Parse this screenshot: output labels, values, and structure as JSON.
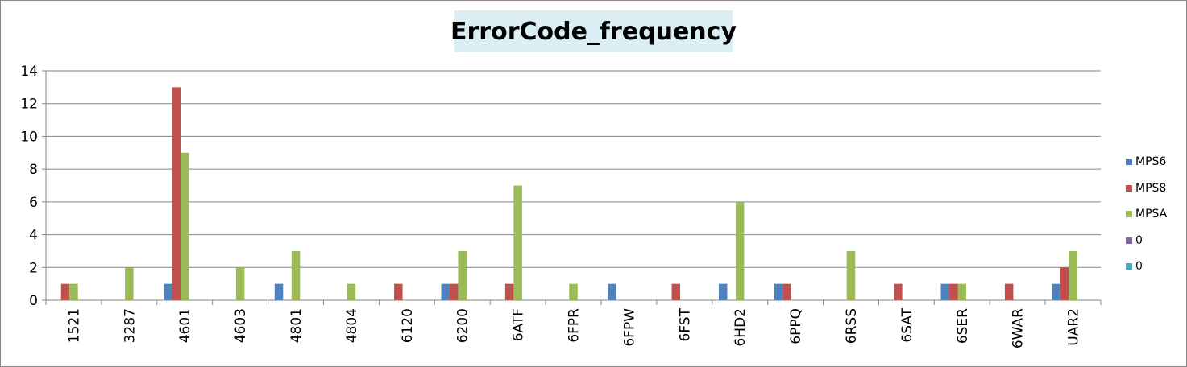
{
  "chart_data": {
    "type": "bar",
    "title": "ErrorCode_frequency",
    "xlabel": "",
    "ylabel": "",
    "ylim": [
      0,
      14
    ],
    "yticks": [
      0,
      2,
      4,
      6,
      8,
      10,
      12,
      14
    ],
    "grid": true,
    "legend_position": "right",
    "categories": [
      "1521",
      "3287",
      "4601",
      "4603",
      "4801",
      "4804",
      "6120",
      "6200",
      "6ATF",
      "6FPR",
      "6FPW",
      "6FST",
      "6HD2",
      "6PPQ",
      "6RSS",
      "6SAT",
      "6SER",
      "6WAR",
      "UAR2"
    ],
    "series": [
      {
        "name": "MPS6",
        "color": "#4f81bd",
        "values": [
          0,
          0,
          1,
          0,
          1,
          0,
          0,
          1,
          0,
          0,
          1,
          0,
          1,
          1,
          0,
          0,
          1,
          0,
          1
        ]
      },
      {
        "name": "MPS8",
        "color": "#c0504d",
        "values": [
          1,
          0,
          13,
          0,
          0,
          0,
          1,
          1,
          1,
          0,
          0,
          1,
          0,
          1,
          0,
          1,
          1,
          1,
          2
        ]
      },
      {
        "name": "MPSA",
        "color": "#9bbb59",
        "values": [
          1,
          2,
          9,
          2,
          3,
          1,
          0,
          3,
          7,
          1,
          0,
          0,
          6,
          0,
          3,
          0,
          1,
          0,
          3
        ]
      },
      {
        "name": "0",
        "color": "#8064a2",
        "values": [
          0,
          0,
          0,
          0,
          0,
          0,
          0,
          0,
          0,
          0,
          0,
          0,
          0,
          0,
          0,
          0,
          0,
          0,
          0
        ]
      },
      {
        "name": "0",
        "color": "#4bacc6",
        "values": [
          0,
          0,
          0,
          0,
          0,
          0,
          0,
          0,
          0,
          0,
          0,
          0,
          0,
          0,
          0,
          0,
          0,
          0,
          0
        ]
      }
    ]
  }
}
